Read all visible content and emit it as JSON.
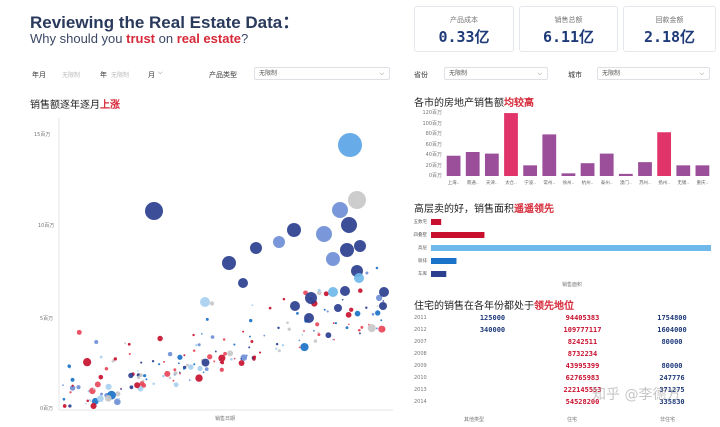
{
  "header": {
    "title": "Reviewing the Real Estate Data：",
    "subtitle_pre": "Why should you ",
    "subtitle_hl1": "trust",
    "subtitle_mid": " on ",
    "subtitle_hl2": "real estate",
    "subtitle_post": "?"
  },
  "kpis": [
    {
      "label": "产品成本",
      "value": "0.33亿"
    },
    {
      "label": "销售总额",
      "value": "6.11亿"
    },
    {
      "label": "回款金额",
      "value": "2.18亿"
    }
  ],
  "filters": {
    "year_label": "年月",
    "year_ph1": "无限制",
    "year_sep": "年",
    "year_ph2": "无限制",
    "month_label": "月",
    "type_label": "产品类型",
    "type_value": "无限制",
    "province_label": "省份",
    "province_value": "无限制",
    "city_label": "城市",
    "city_value": "无限制"
  },
  "scatter": {
    "title_pre": "销售额逐年逐月",
    "title_hl": "上涨",
    "ylabels": [
      "15百万",
      "10百万",
      "5百万",
      "0百万"
    ],
    "xlabel": "销售日期"
  },
  "citybar": {
    "title_pre": "各市的房地产销售额",
    "title_hl": "均较高",
    "ylabels": [
      "120百万",
      "100百万",
      "80百万",
      "60百万",
      "40百万",
      "20百万",
      "0百万"
    ],
    "cities": [
      "上海..",
      "南通..",
      "天津..",
      "太仓..",
      "宁波..",
      "常州..",
      "徐州..",
      "杭州..",
      "泰州..",
      "澳门..",
      "苏州..",
      "扬州..",
      "无锡..",
      "重庆.."
    ]
  },
  "typebar": {
    "title_pre": "高层卖的好，销售面积",
    "title_hl": "遥遥领先",
    "cats": [
      "五数宅",
      "四叠墅",
      "高层",
      "联排",
      "车库"
    ],
    "xlabel": "销售面积"
  },
  "table": {
    "title_pre": "住宅的销售在各年份都处于",
    "title_hl": "领先地位",
    "years": [
      "2011",
      "2012",
      "2007",
      "2008",
      "2009",
      "2010",
      "2013",
      "2014"
    ],
    "rows": [
      [
        "125000",
        "94405383",
        "1754800"
      ],
      [
        "340000",
        "109777117",
        "1604000"
      ],
      [
        "",
        "8242511",
        "80000"
      ],
      [
        "",
        "8732234",
        ""
      ],
      [
        "",
        "43995399",
        "80000"
      ],
      [
        "",
        "62765983",
        "247776"
      ],
      [
        "",
        "222145553",
        "371275"
      ],
      [
        "",
        "54528200",
        "335830"
      ]
    ],
    "cols": [
      "其他类型",
      "住宅",
      "非住宅"
    ]
  },
  "watermark": "知乎 @李德方",
  "chart_data": [
    {
      "type": "scatter",
      "title": "销售额逐年逐月上涨",
      "xlabel": "销售日期",
      "ylabel": "",
      "ylim": [
        0,
        15
      ],
      "unit": "百万"
    },
    {
      "type": "bar",
      "title": "各市的房地产销售额均较高",
      "categories": [
        "上海..",
        "南通..",
        "天津..",
        "太仓..",
        "宁波..",
        "常州..",
        "徐州..",
        "杭州..",
        "泰州..",
        "澳门..",
        "苏州..",
        "扬州..",
        "无锡..",
        "重庆.."
      ],
      "values": [
        38,
        45,
        42,
        118,
        20,
        78,
        5,
        24,
        42,
        4,
        26,
        82,
        20,
        20
      ],
      "ylim": [
        0,
        120
      ],
      "unit": "百万"
    },
    {
      "type": "bar",
      "orientation": "horizontal",
      "title": "高层卖的好，销售面积遥遥领先",
      "categories": [
        "五数宅",
        "四叠墅",
        "高层",
        "联排",
        "车库"
      ],
      "values": [
        4,
        21,
        110,
        10,
        6
      ],
      "xlabel": "销售面积"
    }
  ]
}
